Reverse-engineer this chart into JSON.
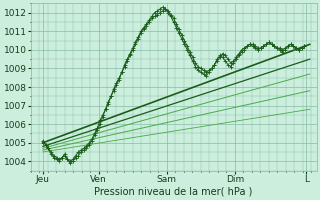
{
  "title": "Pression niveau de la mer( hPa )",
  "bg_color": "#cceedd",
  "plot_bg_color": "#cceedd",
  "grid_color": "#88bbaa",
  "line_color_dark": "#1a5c1a",
  "line_color_med": "#2d8c2d",
  "line_color_light": "#5ab85a",
  "ylim": [
    1003.5,
    1012.5
  ],
  "yticks": [
    1004,
    1005,
    1006,
    1007,
    1008,
    1009,
    1010,
    1011,
    1012
  ],
  "xlim": [
    0,
    4.2
  ],
  "x_ticks": [
    0.18,
    1.0,
    2.0,
    3.0,
    4.05
  ],
  "x_labels": [
    "Jeu",
    "Ven",
    "Sam",
    "Dim",
    "L"
  ],
  "noisy1_x": [
    0.18,
    0.22,
    0.26,
    0.3,
    0.34,
    0.38,
    0.42,
    0.46,
    0.5,
    0.54,
    0.58,
    0.62,
    0.66,
    0.7,
    0.74,
    0.78,
    0.82,
    0.86,
    0.9,
    0.94,
    0.98,
    1.02,
    1.06,
    1.1,
    1.14,
    1.18,
    1.22,
    1.26,
    1.3,
    1.34,
    1.38,
    1.42,
    1.46,
    1.5,
    1.54,
    1.58,
    1.62,
    1.66,
    1.7,
    1.74,
    1.78,
    1.82,
    1.86,
    1.9,
    1.94,
    1.98,
    2.02,
    2.06,
    2.1,
    2.14,
    2.18,
    2.22,
    2.26,
    2.3,
    2.34,
    2.38,
    2.42,
    2.46,
    2.5,
    2.54,
    2.58,
    2.62,
    2.66,
    2.7,
    2.74,
    2.78,
    2.82,
    2.86,
    2.9,
    2.94,
    2.98,
    3.02,
    3.06,
    3.1,
    3.14,
    3.18,
    3.22,
    3.26,
    3.3,
    3.34,
    3.38,
    3.42,
    3.46,
    3.5,
    3.54,
    3.58,
    3.62,
    3.66,
    3.7,
    3.74,
    3.78,
    3.82,
    3.86,
    3.9,
    3.94,
    3.98,
    4.02
  ],
  "noisy1_y": [
    1005.0,
    1004.9,
    1004.7,
    1004.5,
    1004.3,
    1004.2,
    1004.1,
    1004.2,
    1004.3,
    1004.1,
    1004.0,
    1004.1,
    1004.3,
    1004.5,
    1004.6,
    1004.7,
    1004.8,
    1005.0,
    1005.2,
    1005.5,
    1005.8,
    1006.2,
    1006.5,
    1006.8,
    1007.1,
    1007.5,
    1007.9,
    1008.2,
    1008.5,
    1008.8,
    1009.1,
    1009.4,
    1009.7,
    1010.0,
    1010.3,
    1010.6,
    1010.9,
    1011.1,
    1011.3,
    1011.5,
    1011.7,
    1011.8,
    1011.9,
    1012.0,
    1012.1,
    1012.2,
    1012.1,
    1011.9,
    1011.7,
    1011.4,
    1011.1,
    1010.8,
    1010.5,
    1010.2,
    1009.9,
    1009.6,
    1009.3,
    1009.1,
    1009.0,
    1008.9,
    1008.8,
    1008.9,
    1009.0,
    1009.2,
    1009.4,
    1009.6,
    1009.8,
    1009.7,
    1009.5,
    1009.3,
    1009.4,
    1009.6,
    1009.8,
    1010.0,
    1010.1,
    1010.2,
    1010.3,
    1010.3,
    1010.2,
    1010.1,
    1010.1,
    1010.2,
    1010.3,
    1010.4,
    1010.3,
    1010.2,
    1010.1,
    1010.1,
    1010.0,
    1010.1,
    1010.2,
    1010.3,
    1010.2,
    1010.1,
    1010.0,
    1010.1,
    1010.2
  ],
  "noisy2_x": [
    0.18,
    0.22,
    0.26,
    0.3,
    0.34,
    0.38,
    0.42,
    0.46,
    0.5,
    0.54,
    0.58,
    0.62,
    0.66,
    0.7,
    0.74,
    0.78,
    0.82,
    0.86,
    0.9,
    0.94,
    0.98,
    1.02,
    1.06,
    1.1,
    1.14,
    1.18,
    1.22,
    1.26,
    1.3,
    1.34,
    1.38,
    1.42,
    1.46,
    1.5,
    1.54,
    1.58,
    1.62,
    1.66,
    1.7,
    1.74,
    1.78,
    1.82,
    1.86,
    1.9,
    1.94,
    1.98,
    2.02,
    2.06,
    2.1,
    2.14,
    2.18,
    2.22,
    2.26,
    2.3,
    2.34,
    2.38,
    2.42,
    2.46,
    2.5,
    2.54,
    2.58,
    2.62,
    2.66,
    2.7,
    2.74,
    2.78,
    2.82,
    2.86,
    2.9,
    2.94,
    2.98,
    3.02,
    3.06,
    3.1,
    3.14,
    3.18,
    3.22,
    3.26,
    3.3,
    3.34,
    3.38,
    3.42,
    3.46,
    3.5,
    3.54,
    3.58,
    3.62,
    3.66,
    3.7,
    3.74,
    3.78,
    3.82,
    3.86,
    3.9,
    3.94,
    3.98,
    4.02
  ],
  "noisy2_y": [
    1005.1,
    1004.9,
    1004.7,
    1004.4,
    1004.2,
    1004.1,
    1004.0,
    1004.2,
    1004.4,
    1004.1,
    1003.9,
    1004.0,
    1004.2,
    1004.3,
    1004.5,
    1004.6,
    1004.7,
    1004.9,
    1005.1,
    1005.4,
    1005.7,
    1006.0,
    1006.4,
    1006.8,
    1007.2,
    1007.5,
    1007.8,
    1008.1,
    1008.4,
    1008.8,
    1009.2,
    1009.5,
    1009.8,
    1010.1,
    1010.4,
    1010.7,
    1011.0,
    1011.2,
    1011.4,
    1011.6,
    1011.8,
    1012.0,
    1012.1,
    1012.2,
    1012.3,
    1012.2,
    1012.0,
    1011.8,
    1011.5,
    1011.2,
    1010.9,
    1010.6,
    1010.3,
    1010.0,
    1009.7,
    1009.4,
    1009.1,
    1008.9,
    1008.8,
    1008.7,
    1008.6,
    1008.8,
    1009.0,
    1009.2,
    1009.5,
    1009.7,
    1009.6,
    1009.4,
    1009.2,
    1009.1,
    1009.3,
    1009.5,
    1009.7,
    1009.9,
    1010.0,
    1010.2,
    1010.3,
    1010.2,
    1010.1,
    1010.0,
    1010.1,
    1010.2,
    1010.3,
    1010.4,
    1010.3,
    1010.2,
    1010.1,
    1010.0,
    1009.9,
    1010.0,
    1010.2,
    1010.3,
    1010.2,
    1010.1,
    1010.0,
    1010.1,
    1010.2
  ],
  "linear_lines": [
    {
      "x0": 0.18,
      "y0": 1005.0,
      "x1": 4.1,
      "y1": 1010.3,
      "color": "#1a5c1a",
      "lw": 1.2
    },
    {
      "x0": 0.18,
      "y0": 1004.8,
      "x1": 4.1,
      "y1": 1009.5,
      "color": "#1a5c1a",
      "lw": 0.9
    },
    {
      "x0": 0.18,
      "y0": 1004.7,
      "x1": 4.1,
      "y1": 1008.7,
      "color": "#4aaa4a",
      "lw": 0.7
    },
    {
      "x0": 0.18,
      "y0": 1004.6,
      "x1": 4.1,
      "y1": 1007.8,
      "color": "#4aaa4a",
      "lw": 0.7
    },
    {
      "x0": 0.18,
      "y0": 1004.5,
      "x1": 4.1,
      "y1": 1006.8,
      "color": "#4aaa4a",
      "lw": 0.6
    }
  ]
}
